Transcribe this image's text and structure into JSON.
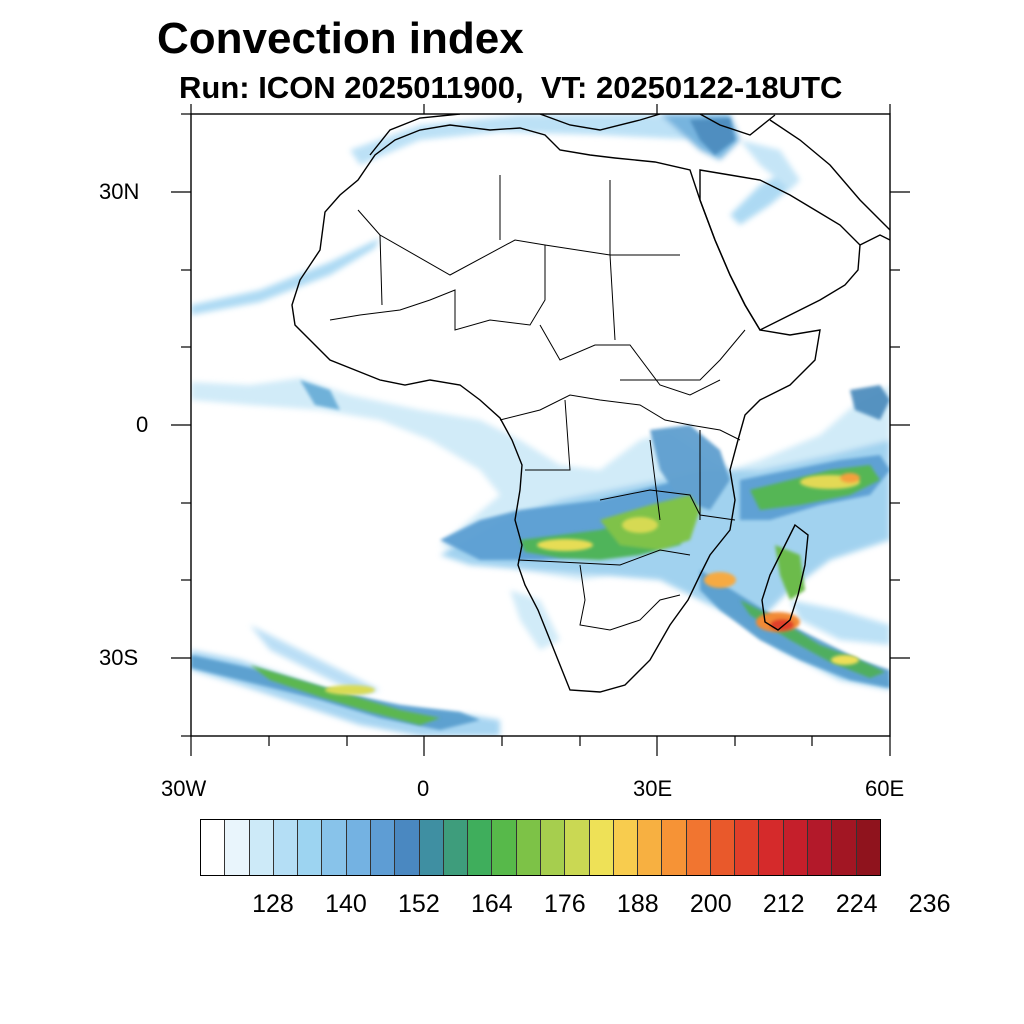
{
  "header": {
    "title": "Convection index",
    "subtitle": "Run: ICON 2025011900,  VT: 20250122-18UTC"
  },
  "axes": {
    "lat_labels": [
      {
        "text": "30N",
        "lat": 30
      },
      {
        "text": "0",
        "lat": 0
      },
      {
        "text": "30S",
        "lat": -30
      }
    ],
    "lon_labels": [
      {
        "text": "30W",
        "lon": -30
      },
      {
        "text": "0",
        "lon": 0
      },
      {
        "text": "30E",
        "lon": 30
      },
      {
        "text": "60E",
        "lon": 60
      }
    ],
    "lon_range": [
      -30,
      60
    ],
    "lat_range": [
      -40,
      40
    ]
  },
  "colorbar": {
    "labels": [
      "128",
      "140",
      "152",
      "164",
      "176",
      "188",
      "200",
      "212",
      "224",
      "236"
    ],
    "colors": [
      "#ffffff",
      "#e9f5fc",
      "#cdeaf8",
      "#b4def5",
      "#9dd4f1",
      "#88c3ea",
      "#74b2e2",
      "#5e9dd4",
      "#4a88c1",
      "#3f8fa2",
      "#3e9d7c",
      "#3fae5c",
      "#57b94a",
      "#7dc247",
      "#a6ce4e",
      "#cad853",
      "#eee157",
      "#f8cc4e",
      "#f7b041",
      "#f69336",
      "#f17530",
      "#e9592b",
      "#e03f2a",
      "#d52a2b",
      "#c51f2b",
      "#b3192a",
      "#a21623",
      "#8f131d"
    ]
  },
  "map": {
    "variable": "convection index",
    "colors": {
      "coast": "#000000",
      "frame": "#000000"
    }
  }
}
